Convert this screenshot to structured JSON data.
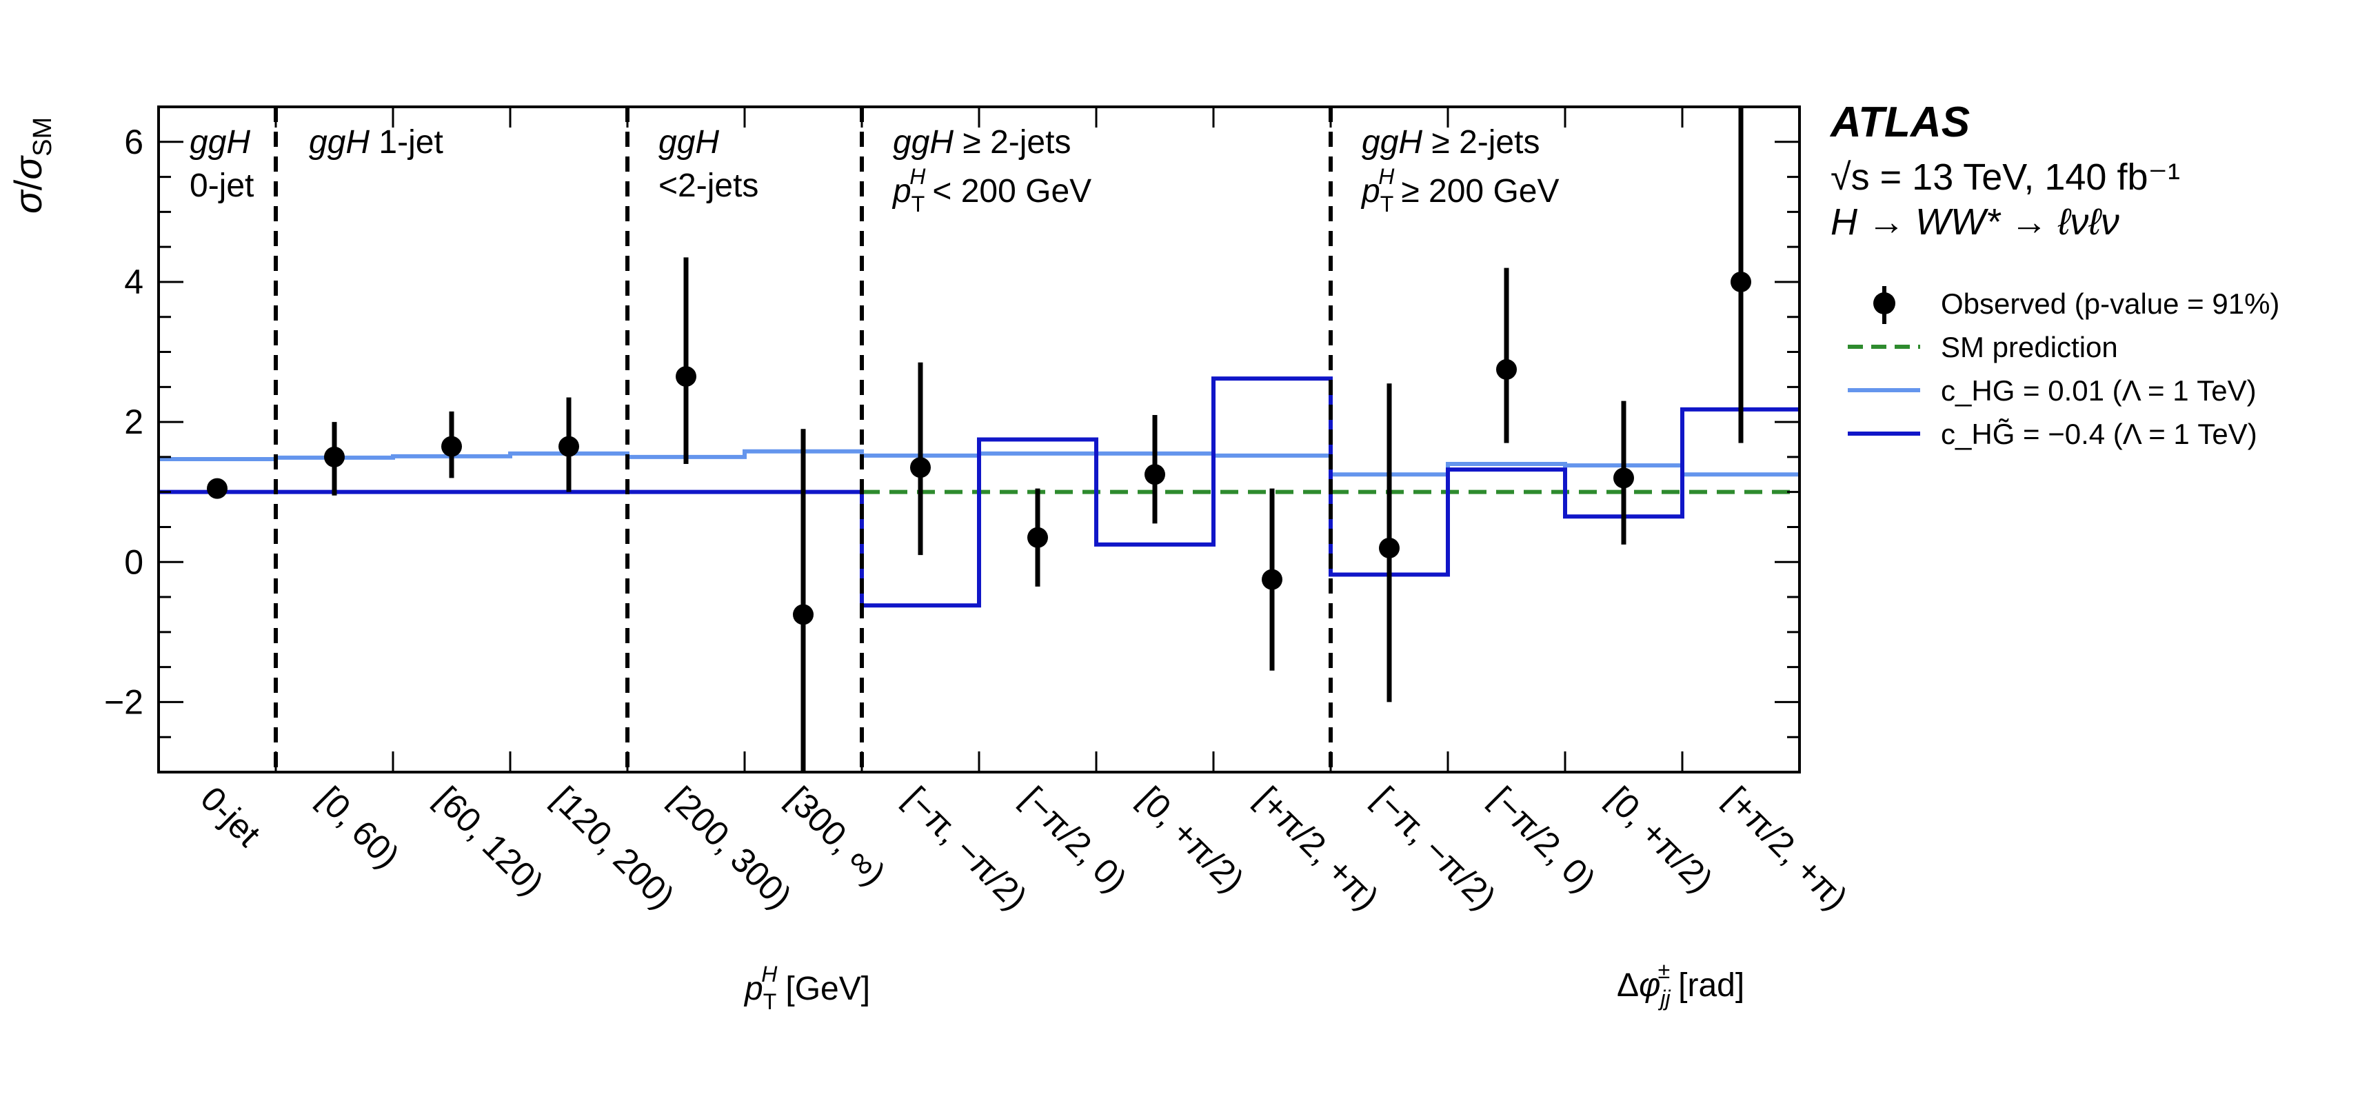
{
  "header": {
    "experiment": "ATLAS",
    "energy_line": "√s = 13 TeV, 140 fb⁻¹",
    "process_line": "H → WW* → ℓνℓν"
  },
  "legend": {
    "observed": "Observed (p-value = 91%)",
    "sm": "SM prediction",
    "chg": "c_HG = 0.01 (Λ = 1 TeV)",
    "chgt": "c_HG̃ = −0.4 (Λ = 1 TeV)"
  },
  "regions": [
    {
      "line1": "ggH",
      "line2": "0-jet"
    },
    {
      "line1": "ggH 1-jet",
      "line2": ""
    },
    {
      "line1": "ggH",
      "line2": "<2-jets"
    },
    {
      "line1": "ggH ≥ 2-jets",
      "line2": "p_T^H < 200 GeV"
    },
    {
      "line1": "ggH ≥ 2-jets",
      "line2": "p_T^H ≥ 200 GeV"
    }
  ],
  "chart_data": {
    "type": "scatter",
    "ylabel": "σ/σ_SM",
    "xlabel_pt": "p_T^H [GeV]",
    "xlabel_dphi": "Δφ_jj^± [rad]",
    "ylim": [
      -3,
      6.5
    ],
    "yticks": [
      -2,
      0,
      2,
      4,
      6
    ],
    "categories": [
      "0-jet",
      "[0, 60)",
      "[60, 120)",
      "[120, 200)",
      "[200, 300)",
      "[300, ∞)",
      "[−π, −π/2)",
      "[−π/2, 0)",
      "[0, +π/2)",
      "[+π/2, +π)",
      "[−π, −π/2)",
      "[−π/2, 0)",
      "[0, +π/2)",
      "[+π/2, +π)"
    ],
    "region_boundaries_after_bin": [
      1,
      4,
      6,
      10
    ],
    "series": [
      {
        "name": "Observed (p-value = 91%)",
        "kind": "points",
        "color": "#000000",
        "values": [
          1.05,
          1.5,
          1.65,
          1.65,
          2.65,
          -0.75,
          1.35,
          0.35,
          1.25,
          -0.25,
          0.2,
          2.75,
          1.2,
          4.0
        ],
        "err_low": [
          0.1,
          0.55,
          0.45,
          0.65,
          1.25,
          2.4,
          1.25,
          0.7,
          0.7,
          1.3,
          2.2,
          1.05,
          0.95,
          2.3
        ],
        "err_high": [
          0.1,
          0.5,
          0.5,
          0.7,
          1.7,
          2.65,
          1.5,
          0.7,
          0.85,
          1.3,
          2.35,
          1.45,
          1.1,
          2.8
        ]
      },
      {
        "name": "SM prediction",
        "kind": "dashed",
        "color": "#2e8b2e",
        "values": [
          1,
          1,
          1,
          1,
          1,
          1,
          1,
          1,
          1,
          1,
          1,
          1,
          1,
          1
        ]
      },
      {
        "name": "c_HG = 0.01 (Λ = 1 TeV)",
        "kind": "step",
        "color": "#6495ed",
        "values": [
          1.47,
          1.49,
          1.51,
          1.55,
          1.5,
          1.58,
          1.52,
          1.55,
          1.55,
          1.52,
          1.25,
          1.4,
          1.38,
          1.25
        ]
      },
      {
        "name": "c_HG̃ = −0.4 (Λ = 1 TeV)",
        "kind": "step",
        "color": "#1016c8",
        "values": [
          1,
          1,
          1,
          1,
          1,
          1,
          -0.62,
          1.75,
          0.25,
          2.62,
          -0.18,
          1.32,
          0.65,
          2.18
        ]
      }
    ]
  }
}
